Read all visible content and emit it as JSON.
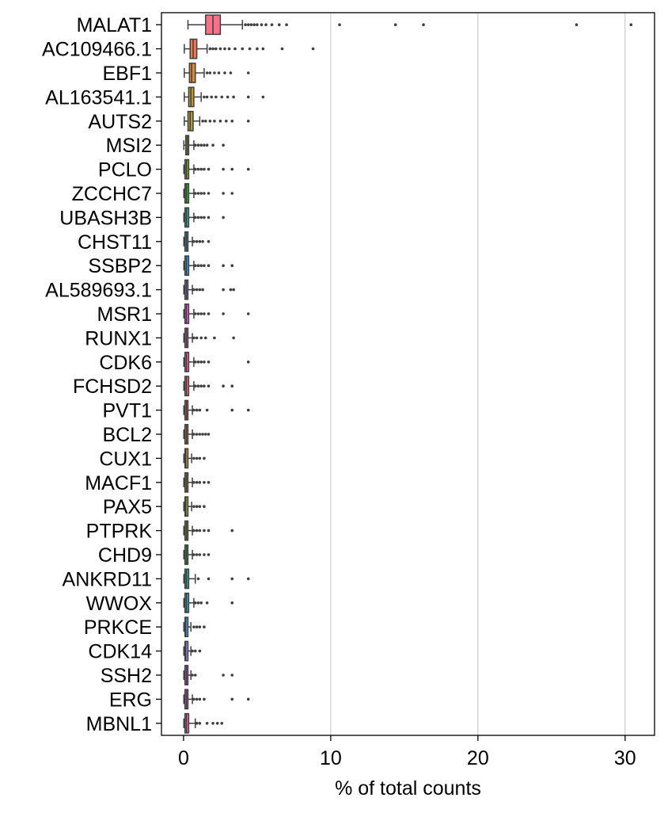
{
  "chart_data": {
    "type": "box",
    "title": "",
    "xlabel": "% of total counts",
    "ylabel": "",
    "xlim": [
      -1.5,
      32
    ],
    "xticks": [
      0,
      10,
      20,
      30
    ],
    "grid": "vertical",
    "legend": "none",
    "categories": [
      "MALAT1",
      "AC109466.1",
      "EBF1",
      "AL163541.1",
      "AUTS2",
      "MSI2",
      "PCLO",
      "ZCCHC7",
      "UBASH3B",
      "CHST11",
      "SSBP2",
      "AL589693.1",
      "MSR1",
      "RUNX1",
      "CDK6",
      "FCHSD2",
      "PVT1",
      "BCL2",
      "CUX1",
      "MACF1",
      "PAX5",
      "PTPRK",
      "CHD9",
      "ANKRD11",
      "WWOX",
      "PRKCE",
      "CDK14",
      "SSH2",
      "ERG",
      "MBNL1"
    ],
    "colors": [
      "#f77189",
      "#f7754f",
      "#dc8932",
      "#c39532",
      "#ae9d31",
      "#97a431",
      "#77ab31",
      "#33b039",
      "#36ada4",
      "#38aabf",
      "#3ba3ec",
      "#a48cf4",
      "#f45deb",
      "#f565cc",
      "#f56bab",
      "#f77189",
      "#f7754f",
      "#dc8932",
      "#c39532",
      "#ae9d31",
      "#97a431",
      "#77ab31",
      "#33b039",
      "#36ada4",
      "#38aabf",
      "#3ba3ec",
      "#a48cf4",
      "#f45deb",
      "#f565cc",
      "#f56bab"
    ],
    "boxes": [
      {
        "gene": "MALAT1",
        "whislo": 0.3,
        "q1": 1.5,
        "med": 2.0,
        "q3": 2.5,
        "whishi": 4.0,
        "fliers": [
          4.2,
          4.4,
          4.6,
          4.8,
          5.0,
          5.3,
          5.6,
          6.0,
          6.5,
          7.0,
          10.6,
          14.4,
          16.3,
          26.7,
          30.4
        ]
      },
      {
        "gene": "AC109466.1",
        "whislo": 0.05,
        "q1": 0.45,
        "med": 0.65,
        "q3": 0.9,
        "whishi": 1.6,
        "fliers": [
          1.8,
          2.0,
          2.2,
          2.5,
          2.8,
          3.1,
          3.5,
          4.0,
          4.5,
          5.0,
          5.4,
          6.7,
          8.8
        ]
      },
      {
        "gene": "EBF1",
        "whislo": 0.05,
        "q1": 0.4,
        "med": 0.55,
        "q3": 0.8,
        "whishi": 1.4,
        "fliers": [
          1.6,
          1.8,
          2.1,
          2.4,
          2.8,
          3.2,
          4.4
        ]
      },
      {
        "gene": "AL163541.1",
        "whislo": 0.05,
        "q1": 0.35,
        "med": 0.5,
        "q3": 0.7,
        "whishi": 1.2,
        "fliers": [
          1.4,
          1.6,
          1.9,
          2.2,
          2.6,
          3.0,
          3.4,
          4.4,
          5.4
        ]
      },
      {
        "gene": "AUTS2",
        "whislo": 0.05,
        "q1": 0.3,
        "med": 0.45,
        "q3": 0.65,
        "whishi": 1.1,
        "fliers": [
          1.3,
          1.5,
          1.8,
          2.1,
          2.5,
          2.9,
          3.3,
          4.4
        ]
      },
      {
        "gene": "MSI2",
        "whislo": 0.02,
        "q1": 0.15,
        "med": 0.25,
        "q3": 0.35,
        "whishi": 0.7,
        "fliers": [
          0.8,
          1.0,
          1.2,
          1.4,
          1.6,
          2.0,
          2.7
        ]
      },
      {
        "gene": "PCLO",
        "whislo": 0.02,
        "q1": 0.1,
        "med": 0.2,
        "q3": 0.35,
        "whishi": 0.7,
        "fliers": [
          0.8,
          1.0,
          1.2,
          1.4,
          1.7,
          2.7,
          3.3,
          4.4
        ]
      },
      {
        "gene": "ZCCHC7",
        "whislo": 0.02,
        "q1": 0.1,
        "med": 0.2,
        "q3": 0.35,
        "whishi": 0.7,
        "fliers": [
          0.8,
          1.0,
          1.2,
          1.4,
          1.7,
          2.7,
          3.3
        ]
      },
      {
        "gene": "UBASH3B",
        "whislo": 0.02,
        "q1": 0.1,
        "med": 0.2,
        "q3": 0.35,
        "whishi": 0.7,
        "fliers": [
          0.8,
          1.0,
          1.2,
          1.4,
          1.7,
          2.7
        ]
      },
      {
        "gene": "CHST11",
        "whislo": 0.02,
        "q1": 0.1,
        "med": 0.2,
        "q3": 0.3,
        "whishi": 0.6,
        "fliers": [
          0.7,
          0.9,
          1.1,
          1.3,
          1.7
        ]
      },
      {
        "gene": "SSBP2",
        "whislo": 0.02,
        "q1": 0.1,
        "med": 0.2,
        "q3": 0.35,
        "whishi": 0.7,
        "fliers": [
          0.8,
          1.0,
          1.2,
          1.4,
          1.7,
          2.7,
          3.3
        ]
      },
      {
        "gene": "AL589693.1",
        "whislo": 0.02,
        "q1": 0.1,
        "med": 0.2,
        "q3": 0.3,
        "whishi": 0.6,
        "fliers": [
          0.7,
          0.9,
          1.1,
          1.3,
          2.7,
          3.2,
          3.4
        ]
      },
      {
        "gene": "MSR1",
        "whislo": 0.02,
        "q1": 0.1,
        "med": 0.2,
        "q3": 0.35,
        "whishi": 0.7,
        "fliers": [
          0.8,
          1.0,
          1.2,
          1.4,
          1.7,
          2.7,
          4.4
        ]
      },
      {
        "gene": "RUNX1",
        "whislo": 0.02,
        "q1": 0.1,
        "med": 0.2,
        "q3": 0.3,
        "whishi": 0.6,
        "fliers": [
          0.7,
          0.9,
          1.2,
          1.5,
          2.1,
          3.4
        ]
      },
      {
        "gene": "CDK6",
        "whislo": 0.02,
        "q1": 0.1,
        "med": 0.2,
        "q3": 0.35,
        "whishi": 0.7,
        "fliers": [
          0.8,
          1.0,
          1.2,
          1.4,
          1.7,
          4.4
        ]
      },
      {
        "gene": "FCHSD2",
        "whislo": 0.02,
        "q1": 0.1,
        "med": 0.2,
        "q3": 0.35,
        "whishi": 0.7,
        "fliers": [
          0.8,
          1.0,
          1.2,
          1.4,
          1.7,
          2.7,
          3.3
        ]
      },
      {
        "gene": "PVT1",
        "whislo": 0.02,
        "q1": 0.1,
        "med": 0.2,
        "q3": 0.3,
        "whishi": 0.6,
        "fliers": [
          0.7,
          0.9,
          1.1,
          1.6,
          3.3,
          4.4
        ]
      },
      {
        "gene": "BCL2",
        "whislo": 0.02,
        "q1": 0.1,
        "med": 0.2,
        "q3": 0.3,
        "whishi": 0.6,
        "fliers": [
          0.7,
          0.9,
          1.1,
          1.3,
          1.5,
          1.7
        ]
      },
      {
        "gene": "CUX1",
        "whislo": 0.02,
        "q1": 0.1,
        "med": 0.15,
        "q3": 0.3,
        "whishi": 0.55,
        "fliers": [
          0.7,
          0.9,
          1.1,
          1.4
        ]
      },
      {
        "gene": "MACF1",
        "whislo": 0.02,
        "q1": 0.1,
        "med": 0.2,
        "q3": 0.3,
        "whishi": 0.6,
        "fliers": [
          0.7,
          0.9,
          1.1,
          1.4,
          1.7
        ]
      },
      {
        "gene": "PAX5",
        "whislo": 0.02,
        "q1": 0.1,
        "med": 0.15,
        "q3": 0.3,
        "whishi": 0.55,
        "fliers": [
          0.7,
          0.9,
          1.1,
          1.4
        ]
      },
      {
        "gene": "PTPRK",
        "whislo": 0.02,
        "q1": 0.1,
        "med": 0.2,
        "q3": 0.3,
        "whishi": 0.6,
        "fliers": [
          0.7,
          0.9,
          1.1,
          1.4,
          1.7,
          3.3
        ]
      },
      {
        "gene": "CHD9",
        "whislo": 0.02,
        "q1": 0.1,
        "med": 0.2,
        "q3": 0.3,
        "whishi": 0.6,
        "fliers": [
          0.7,
          0.9,
          1.1,
          1.4,
          1.7
        ]
      },
      {
        "gene": "ANKRD11",
        "whislo": 0.02,
        "q1": 0.1,
        "med": 0.2,
        "q3": 0.35,
        "whishi": 0.8,
        "fliers": [
          1.0,
          1.7,
          3.3,
          4.4
        ]
      },
      {
        "gene": "WWOX",
        "whislo": 0.02,
        "q1": 0.1,
        "med": 0.2,
        "q3": 0.35,
        "whishi": 0.7,
        "fliers": [
          0.8,
          1.0,
          1.2,
          1.6,
          3.3
        ]
      },
      {
        "gene": "PRKCE",
        "whislo": 0.02,
        "q1": 0.1,
        "med": 0.15,
        "q3": 0.3,
        "whishi": 0.5,
        "fliers": [
          0.7,
          0.9,
          1.1,
          1.4
        ]
      },
      {
        "gene": "CDK14",
        "whislo": 0.02,
        "q1": 0.1,
        "med": 0.15,
        "q3": 0.3,
        "whishi": 0.5,
        "fliers": [
          0.6,
          0.8,
          1.1
        ]
      },
      {
        "gene": "SSH2",
        "whislo": 0.02,
        "q1": 0.1,
        "med": 0.2,
        "q3": 0.3,
        "whishi": 0.5,
        "fliers": [
          0.6,
          0.8,
          2.7,
          3.3
        ]
      },
      {
        "gene": "ERG",
        "whislo": 0.02,
        "q1": 0.1,
        "med": 0.2,
        "q3": 0.3,
        "whishi": 0.6,
        "fliers": [
          0.7,
          0.9,
          1.1,
          1.4,
          3.3,
          4.4
        ]
      },
      {
        "gene": "MBNL1",
        "whislo": 0.02,
        "q1": 0.1,
        "med": 0.2,
        "q3": 0.35,
        "whishi": 0.8,
        "fliers": [
          0.9,
          1.1,
          1.6,
          2.0,
          2.3,
          2.6
        ]
      }
    ]
  }
}
